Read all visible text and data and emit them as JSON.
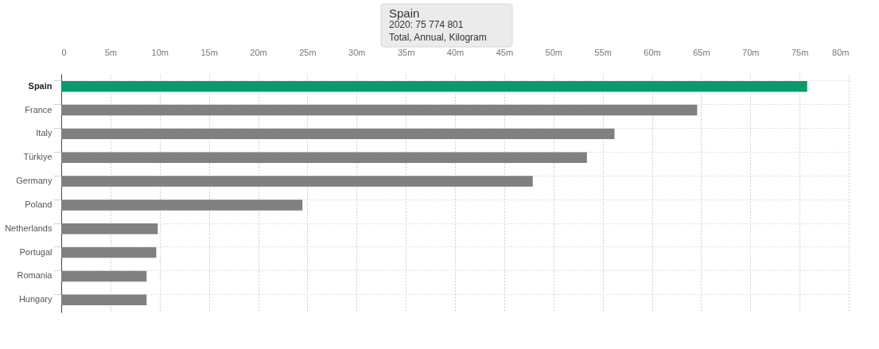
{
  "chart_data": {
    "type": "bar",
    "orientation": "horizontal",
    "categories": [
      "Spain",
      "France",
      "Italy",
      "Türkiye",
      "Germany",
      "Poland",
      "Netherlands",
      "Portugal",
      "Romania",
      "Hungary"
    ],
    "values": [
      75774801,
      64600000,
      56200000,
      53400000,
      47900000,
      24500000,
      9800000,
      9650000,
      8670000,
      8670000
    ],
    "colors": [
      "#069a6e",
      "#808080",
      "#808080",
      "#808080",
      "#808080",
      "#808080",
      "#808080",
      "#808080",
      "#808080",
      "#808080"
    ],
    "xlim": [
      0,
      80000000
    ],
    "xticks": [
      {
        "value": 0,
        "label": "0"
      },
      {
        "value": 5000000,
        "label": "5m"
      },
      {
        "value": 10000000,
        "label": "10m"
      },
      {
        "value": 15000000,
        "label": "15m"
      },
      {
        "value": 20000000,
        "label": "20m"
      },
      {
        "value": 25000000,
        "label": "25m"
      },
      {
        "value": 30000000,
        "label": "30m"
      },
      {
        "value": 35000000,
        "label": "35m"
      },
      {
        "value": 40000000,
        "label": "40m"
      },
      {
        "value": 45000000,
        "label": "45m"
      },
      {
        "value": 50000000,
        "label": "50m"
      },
      {
        "value": 55000000,
        "label": "55m"
      },
      {
        "value": 60000000,
        "label": "60m"
      },
      {
        "value": 65000000,
        "label": "65m"
      },
      {
        "value": 70000000,
        "label": "70m"
      },
      {
        "value": 75000000,
        "label": "75m"
      },
      {
        "value": 80000000,
        "label": "80m"
      }
    ],
    "grid": true,
    "annotations": [
      "Spain",
      "2020: 75 774 801",
      "Total, Annual, Kilogram"
    ]
  }
}
